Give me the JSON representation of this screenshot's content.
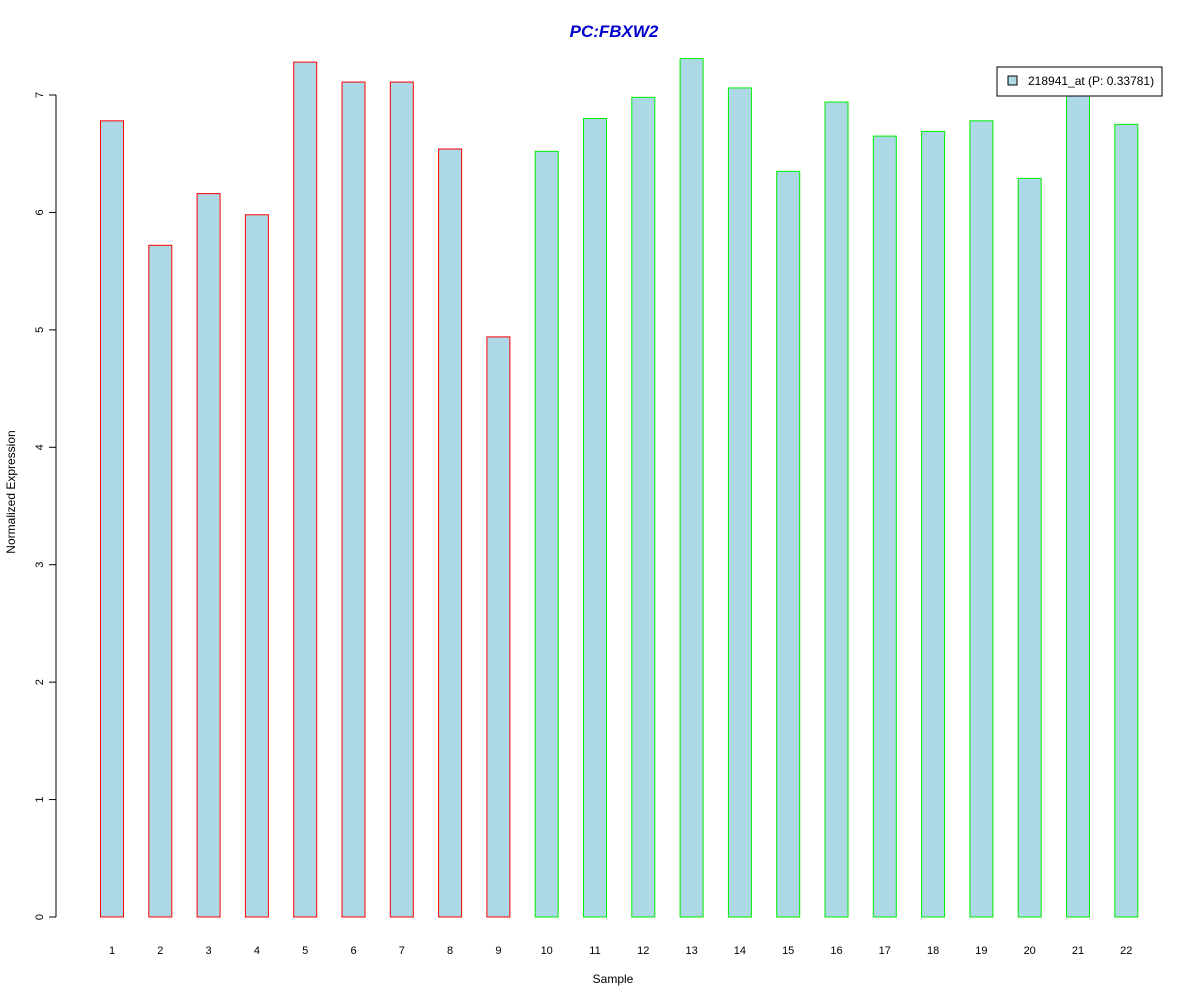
{
  "colors": {
    "title": "#0000CC",
    "bar_fill": "#ADD8E6",
    "group_a_border": "#FF0000",
    "group_b_border": "#00EE00",
    "axis": "#000000"
  },
  "chart_data": {
    "type": "bar",
    "title": "PC:FBXW2",
    "xlabel": "Sample",
    "ylabel": "Normalized Expression",
    "ylim": [
      0,
      7.0
    ],
    "yticks": [
      0,
      1,
      2,
      3,
      4,
      5,
      6,
      7
    ],
    "grid": false,
    "legend_position": "top-right",
    "categories": [
      "1",
      "2",
      "3",
      "4",
      "5",
      "6",
      "7",
      "8",
      "9",
      "10",
      "11",
      "12",
      "13",
      "14",
      "15",
      "16",
      "17",
      "18",
      "19",
      "20",
      "21",
      "22"
    ],
    "series": [
      {
        "name": "218941_at (P: 0.33781)",
        "values": [
          6.78,
          5.72,
          6.16,
          5.98,
          7.28,
          7.11,
          7.11,
          6.54,
          4.94,
          6.52,
          6.8,
          6.98,
          7.31,
          7.06,
          6.35,
          6.94,
          6.65,
          6.69,
          6.78,
          6.29,
          7.02,
          6.75
        ],
        "border_groups": [
          "a",
          "a",
          "a",
          "a",
          "a",
          "a",
          "a",
          "a",
          "a",
          "b",
          "b",
          "b",
          "b",
          "b",
          "b",
          "b",
          "b",
          "b",
          "b",
          "b",
          "b",
          "b"
        ]
      }
    ]
  }
}
